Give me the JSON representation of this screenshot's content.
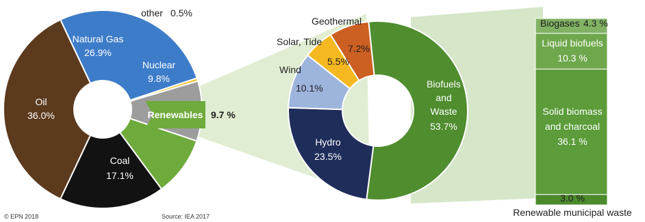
{
  "chart_data": [
    {
      "type": "pie",
      "categories": [
        "Oil",
        "Natural Gas",
        "other",
        "Nuclear",
        "Renewables",
        "Coal"
      ],
      "values": [
        36.0,
        26.9,
        0.5,
        9.8,
        9.7,
        17.1
      ],
      "value_labels": [
        "36.0%",
        "26.9%",
        "0.5%",
        "9.8%",
        "9.7 %",
        "17.1%"
      ],
      "colors": [
        "#5c3a1e",
        "#3d7cc9",
        "#f2c230",
        "#9d9d9d",
        "#6faa3c",
        "#121212"
      ],
      "donut": true
    },
    {
      "type": "pie",
      "categories": [
        "Biofuels and Waste",
        "Hydro",
        "Wind",
        "Solar, Tide",
        "Geothermal"
      ],
      "values": [
        53.7,
        23.5,
        10.1,
        5.5,
        7.2
      ],
      "value_labels": [
        "53.7%",
        "23.5%",
        "10.1%",
        "5.5%",
        "7.2%"
      ],
      "colors": [
        "#4f8d2e",
        "#1f2d5a",
        "#9db4dc",
        "#f6b820",
        "#cc5f22"
      ],
      "donut": true
    },
    {
      "type": "bar",
      "stacked": true,
      "categories": [
        "Biogases",
        "Liquid biofuels",
        "Solid biomass and charcoal",
        "Renewable municipal waste"
      ],
      "values": [
        4.3,
        10.3,
        36.1,
        3.0
      ],
      "value_labels": [
        "4.3 %",
        "10.3 %",
        "36.1 %",
        "3.0 %"
      ],
      "colors": [
        "#82b264",
        "#6fa84c",
        "#5c9c3a",
        "#4d8a2e"
      ]
    }
  ],
  "labels": {
    "oil": "Oil",
    "oil_pct": "36.0%",
    "gas_1": "Natural Gas",
    "gas_pct": "26.9%",
    "other": "other",
    "other_pct": "0.5%",
    "nuclear": "Nuclear",
    "nuclear_pct": "9.8%",
    "coal": "Coal",
    "coal_pct": "17.1%",
    "renewables": "Renewables",
    "renewables_pct": "9.7 %",
    "geothermal": "Geothermal",
    "geothermal_pct": "7.2%",
    "solar": "Solar, Tide",
    "solar_pct": "5.5%",
    "wind": "Wind",
    "wind_pct": "10.1%",
    "hydro": "Hydro",
    "hydro_pct": "23.5%",
    "bio_1": "Biofuels",
    "bio_2": "and",
    "bio_3": "Waste",
    "bio_pct": "53.7%",
    "biogases": "Biogases",
    "biogases_pct": "4.3 %",
    "liquid": "Liquid biofuels",
    "liquid_pct": "10.3 %",
    "solid_1": "Solid biomass",
    "solid_2": "and charcoal",
    "solid_pct": "36.1 %",
    "msw_pct": "3.0 %",
    "msw": "Renewable municipal waste"
  },
  "footer": {
    "copyright": "© EPN 2018",
    "source": "Source: IEA 2017"
  }
}
